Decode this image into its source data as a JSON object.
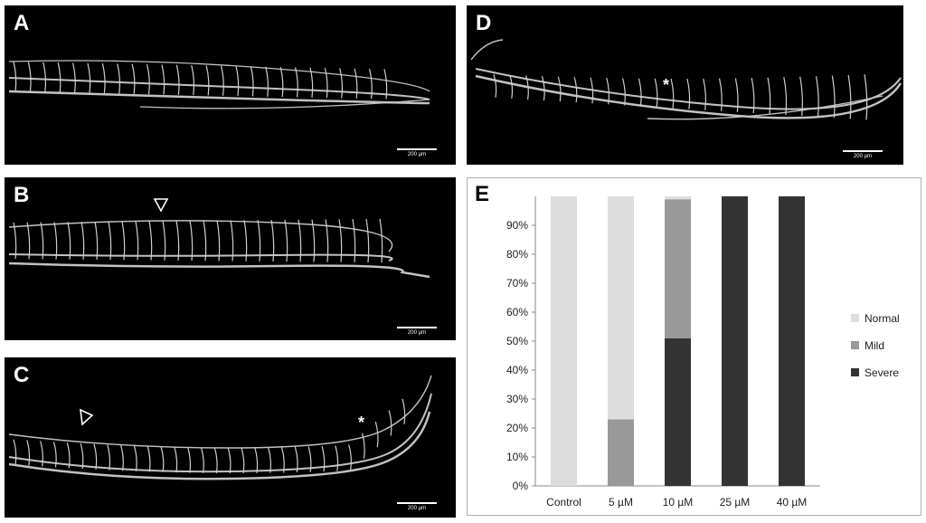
{
  "panels": {
    "A": {
      "label": "A",
      "scale": "200 µm"
    },
    "B": {
      "label": "B",
      "scale": "200 µm"
    },
    "C": {
      "label": "C",
      "scale": "200 µm",
      "star": "*"
    },
    "D": {
      "label": "D",
      "scale": "200 µm",
      "star": "*"
    },
    "E": {
      "label": "E"
    }
  },
  "chart_data": {
    "type": "bar",
    "stacked": true,
    "categories": [
      "Control",
      "5 µM",
      "10 µM",
      "25 µM",
      "40 µM"
    ],
    "series": [
      {
        "name": "Severe",
        "color": "#333333",
        "values": [
          0,
          0,
          51,
          100,
          100
        ]
      },
      {
        "name": "Mild",
        "color": "#999999",
        "values": [
          0,
          23,
          48,
          0,
          0
        ]
      },
      {
        "name": "Normal",
        "color": "#dddddd",
        "values": [
          100,
          77,
          1,
          0,
          0
        ]
      }
    ],
    "legend_order": [
      "Normal",
      "Mild",
      "Severe"
    ],
    "legend_position": "right",
    "ylim": [
      0,
      100
    ],
    "yticks": [
      "0%",
      "10%",
      "20%",
      "30%",
      "40%",
      "50%",
      "60%",
      "70%",
      "80%",
      "90%"
    ],
    "ytick_values": [
      0,
      10,
      20,
      30,
      40,
      50,
      60,
      70,
      80,
      90
    ],
    "grid": false
  }
}
